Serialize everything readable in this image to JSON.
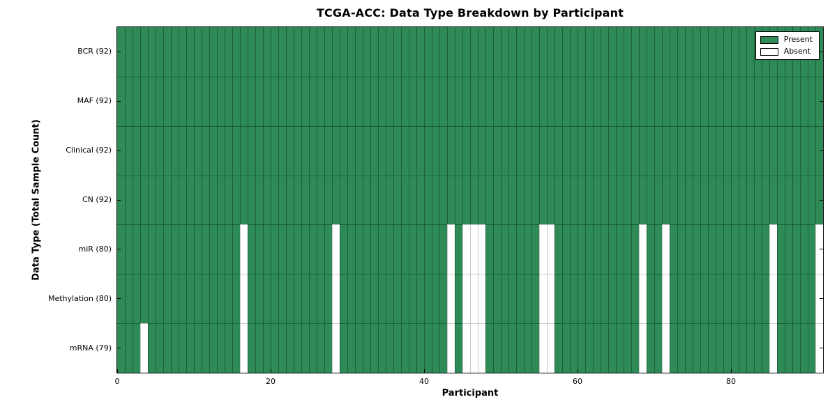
{
  "chart_data": {
    "type": "heatmap",
    "title": "TCGA-ACC: Data Type Breakdown by Participant",
    "xlabel": "Participant",
    "ylabel": "Data Type (Total Sample Count)",
    "n_participants": 92,
    "xlim": [
      0,
      92
    ],
    "x_ticks": [
      0,
      20,
      40,
      60,
      80
    ],
    "grid": "off",
    "rows": [
      {
        "label": "BCR (92)",
        "data_type": "BCR",
        "present_count": 92,
        "absent_participants": []
      },
      {
        "label": "MAF (92)",
        "data_type": "MAF",
        "present_count": 92,
        "absent_participants": []
      },
      {
        "label": "Clinical (92)",
        "data_type": "Clinical",
        "present_count": 92,
        "absent_participants": []
      },
      {
        "label": "CN (92)",
        "data_type": "CN",
        "present_count": 92,
        "absent_participants": []
      },
      {
        "label": "miR (80)",
        "data_type": "miR",
        "present_count": 80,
        "absent_participants": [
          16,
          28,
          43,
          45,
          46,
          47,
          55,
          56,
          68,
          71,
          85,
          91
        ]
      },
      {
        "label": "Methylation (80)",
        "data_type": "Methylation",
        "present_count": 80,
        "absent_participants": [
          16,
          28,
          43,
          45,
          46,
          47,
          55,
          56,
          68,
          71,
          85,
          91
        ]
      },
      {
        "label": "mRNA (79)",
        "data_type": "mRNA",
        "present_count": 79,
        "absent_participants": [
          3,
          16,
          28,
          43,
          45,
          46,
          47,
          55,
          56,
          68,
          71,
          85,
          91
        ]
      }
    ],
    "legend": {
      "position": "upper right",
      "entries": [
        {
          "label": "Present",
          "color": "#2e8b57"
        },
        {
          "label": "Absent",
          "color": "#ffffff"
        }
      ]
    },
    "colors": {
      "present": "#2e8b57",
      "absent": "#ffffff",
      "present_edge": "#1b5e38",
      "absent_edge": "#c8c8c8",
      "spine": "#000000"
    }
  }
}
